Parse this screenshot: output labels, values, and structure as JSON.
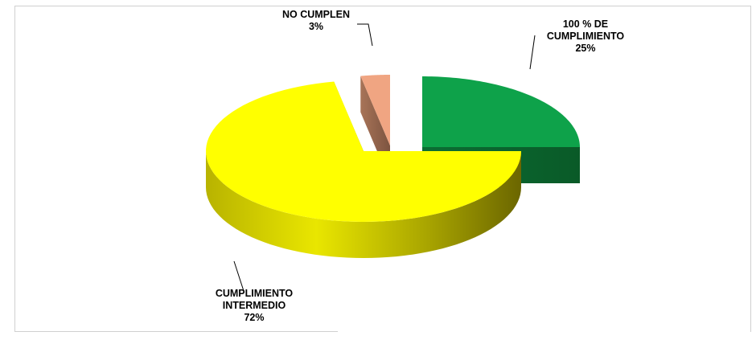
{
  "chart_data": {
    "type": "pie",
    "style": "3d-exploded",
    "categories": [
      "100 % DE CUMPLIMIENTO",
      "NO CUMPLEN",
      "CUMPLIMIENTO INTERMEDIO"
    ],
    "values": [
      25,
      3,
      72
    ],
    "colors": {
      "cumplimiento_total": "#0ea24a",
      "no_cumplen": "#f0a582",
      "intermedio": "#ffff00"
    },
    "labels": [
      {
        "lines": [
          "100 % DE",
          "CUMPLIMIENTO",
          "25%"
        ]
      },
      {
        "lines": [
          "NO CUMPLEN",
          "3%"
        ]
      },
      {
        "lines": [
          "CUMPLIMIENTO",
          "INTERMEDIO",
          "72%"
        ]
      }
    ]
  }
}
